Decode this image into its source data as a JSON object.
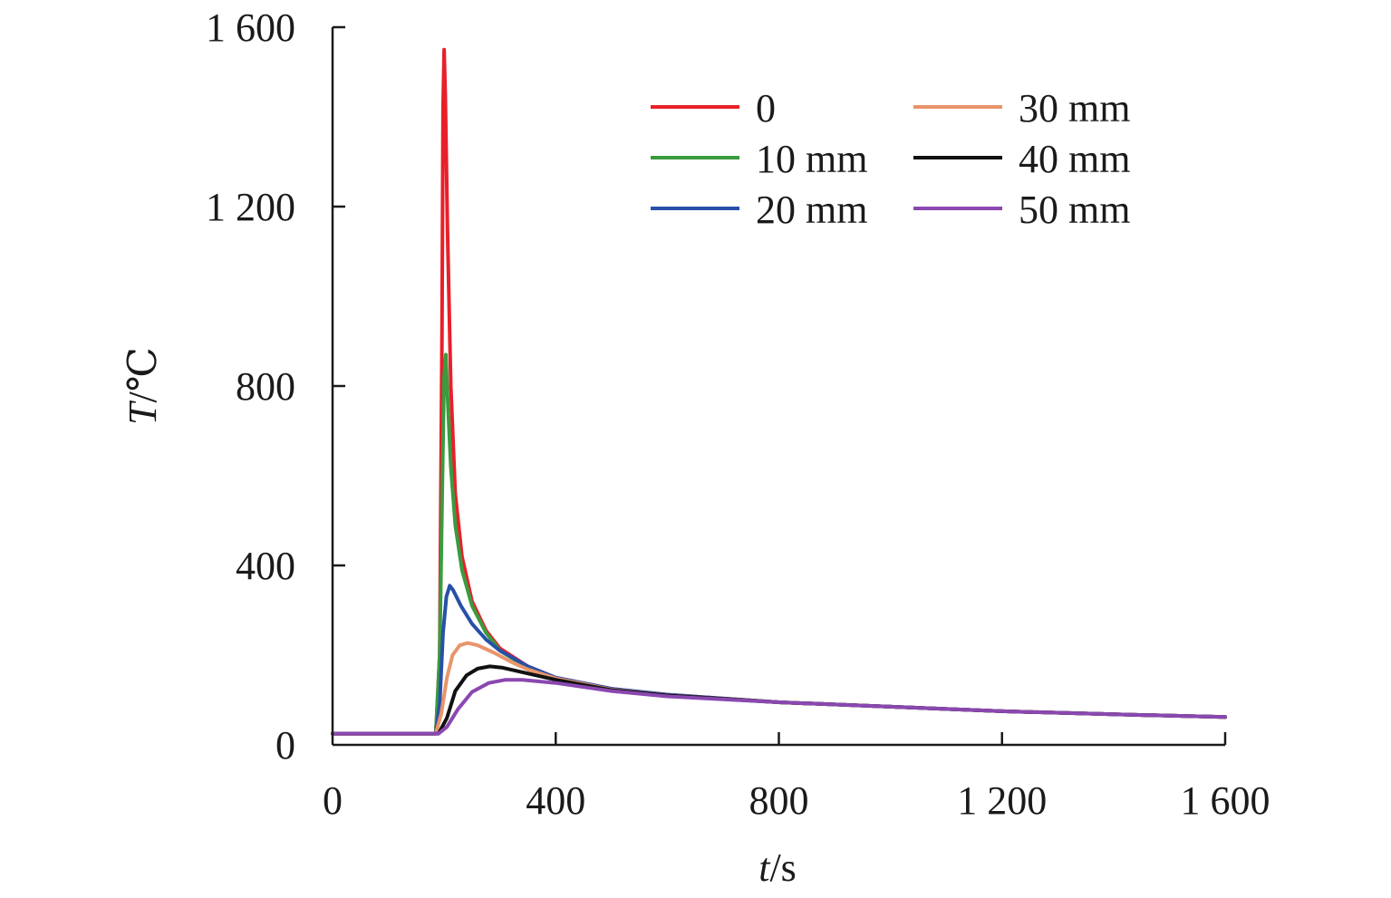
{
  "chart_data": {
    "type": "line",
    "xlabel_var": "t",
    "xlabel_unit": "/s",
    "ylabel_var": "T",
    "ylabel_unit": "/℃",
    "xlim": [
      0,
      1600
    ],
    "ylim": [
      0,
      1600
    ],
    "xticks": [
      0,
      400,
      800,
      1200,
      1600
    ],
    "yticks": [
      0,
      400,
      800,
      1200,
      1600
    ],
    "xtick_labels": [
      "0",
      "400",
      "800",
      "1 200",
      "1 600"
    ],
    "ytick_labels": [
      "0",
      "400",
      "800",
      "1 200",
      "1 600"
    ],
    "grid": false,
    "legend_position": "top-right",
    "series": [
      {
        "name": "0",
        "color": "#e8202a",
        "points": [
          [
            0,
            25
          ],
          [
            185,
            25
          ],
          [
            192,
            200
          ],
          [
            196,
            900
          ],
          [
            198,
            1420
          ],
          [
            200,
            1550
          ],
          [
            202,
            1450
          ],
          [
            206,
            1150
          ],
          [
            212,
            800
          ],
          [
            220,
            560
          ],
          [
            232,
            420
          ],
          [
            250,
            320
          ],
          [
            275,
            255
          ],
          [
            300,
            215
          ],
          [
            350,
            175
          ],
          [
            400,
            150
          ],
          [
            500,
            125
          ],
          [
            600,
            112
          ],
          [
            800,
            95
          ],
          [
            1000,
            85
          ],
          [
            1200,
            75
          ],
          [
            1400,
            68
          ],
          [
            1600,
            62
          ]
        ]
      },
      {
        "name": "10 mm",
        "color": "#3a9b3f",
        "points": [
          [
            0,
            25
          ],
          [
            185,
            25
          ],
          [
            192,
            200
          ],
          [
            197,
            600
          ],
          [
            200,
            820
          ],
          [
            203,
            870
          ],
          [
            206,
            780
          ],
          [
            212,
            620
          ],
          [
            220,
            490
          ],
          [
            232,
            390
          ],
          [
            250,
            310
          ],
          [
            275,
            250
          ],
          [
            300,
            210
          ],
          [
            350,
            172
          ],
          [
            400,
            148
          ],
          [
            500,
            124
          ],
          [
            600,
            110
          ],
          [
            800,
            95
          ],
          [
            1000,
            85
          ],
          [
            1200,
            75
          ],
          [
            1400,
            68
          ],
          [
            1600,
            62
          ]
        ]
      },
      {
        "name": "20 mm",
        "color": "#2850a8",
        "points": [
          [
            0,
            25
          ],
          [
            185,
            25
          ],
          [
            192,
            90
          ],
          [
            198,
            250
          ],
          [
            204,
            330
          ],
          [
            210,
            355
          ],
          [
            216,
            345
          ],
          [
            230,
            310
          ],
          [
            250,
            270
          ],
          [
            275,
            235
          ],
          [
            300,
            210
          ],
          [
            350,
            175
          ],
          [
            400,
            150
          ],
          [
            500,
            125
          ],
          [
            600,
            112
          ],
          [
            800,
            95
          ],
          [
            1000,
            85
          ],
          [
            1200,
            75
          ],
          [
            1400,
            68
          ],
          [
            1600,
            62
          ]
        ]
      },
      {
        "name": "30 mm",
        "color": "#e8956a",
        "points": [
          [
            0,
            25
          ],
          [
            185,
            25
          ],
          [
            195,
            70
          ],
          [
            205,
            150
          ],
          [
            215,
            200
          ],
          [
            228,
            222
          ],
          [
            242,
            227
          ],
          [
            260,
            222
          ],
          [
            290,
            205
          ],
          [
            320,
            185
          ],
          [
            350,
            168
          ],
          [
            400,
            148
          ],
          [
            500,
            123
          ],
          [
            600,
            110
          ],
          [
            800,
            95
          ],
          [
            1000,
            85
          ],
          [
            1200,
            75
          ],
          [
            1400,
            68
          ],
          [
            1600,
            62
          ]
        ]
      },
      {
        "name": "40 mm",
        "color": "#111111",
        "points": [
          [
            0,
            25
          ],
          [
            190,
            25
          ],
          [
            205,
            60
          ],
          [
            220,
            120
          ],
          [
            240,
            155
          ],
          [
            260,
            170
          ],
          [
            282,
            175
          ],
          [
            305,
            172
          ],
          [
            340,
            162
          ],
          [
            400,
            145
          ],
          [
            500,
            122
          ],
          [
            600,
            110
          ],
          [
            800,
            95
          ],
          [
            1000,
            85
          ],
          [
            1200,
            75
          ],
          [
            1400,
            68
          ],
          [
            1600,
            62
          ]
        ]
      },
      {
        "name": "50 mm",
        "color": "#8a48b0",
        "points": [
          [
            0,
            25
          ],
          [
            190,
            25
          ],
          [
            205,
            40
          ],
          [
            225,
            80
          ],
          [
            250,
            118
          ],
          [
            280,
            138
          ],
          [
            310,
            145
          ],
          [
            340,
            145
          ],
          [
            400,
            138
          ],
          [
            500,
            120
          ],
          [
            600,
            108
          ],
          [
            800,
            95
          ],
          [
            1000,
            85
          ],
          [
            1200,
            75
          ],
          [
            1400,
            68
          ],
          [
            1600,
            62
          ]
        ]
      }
    ]
  }
}
